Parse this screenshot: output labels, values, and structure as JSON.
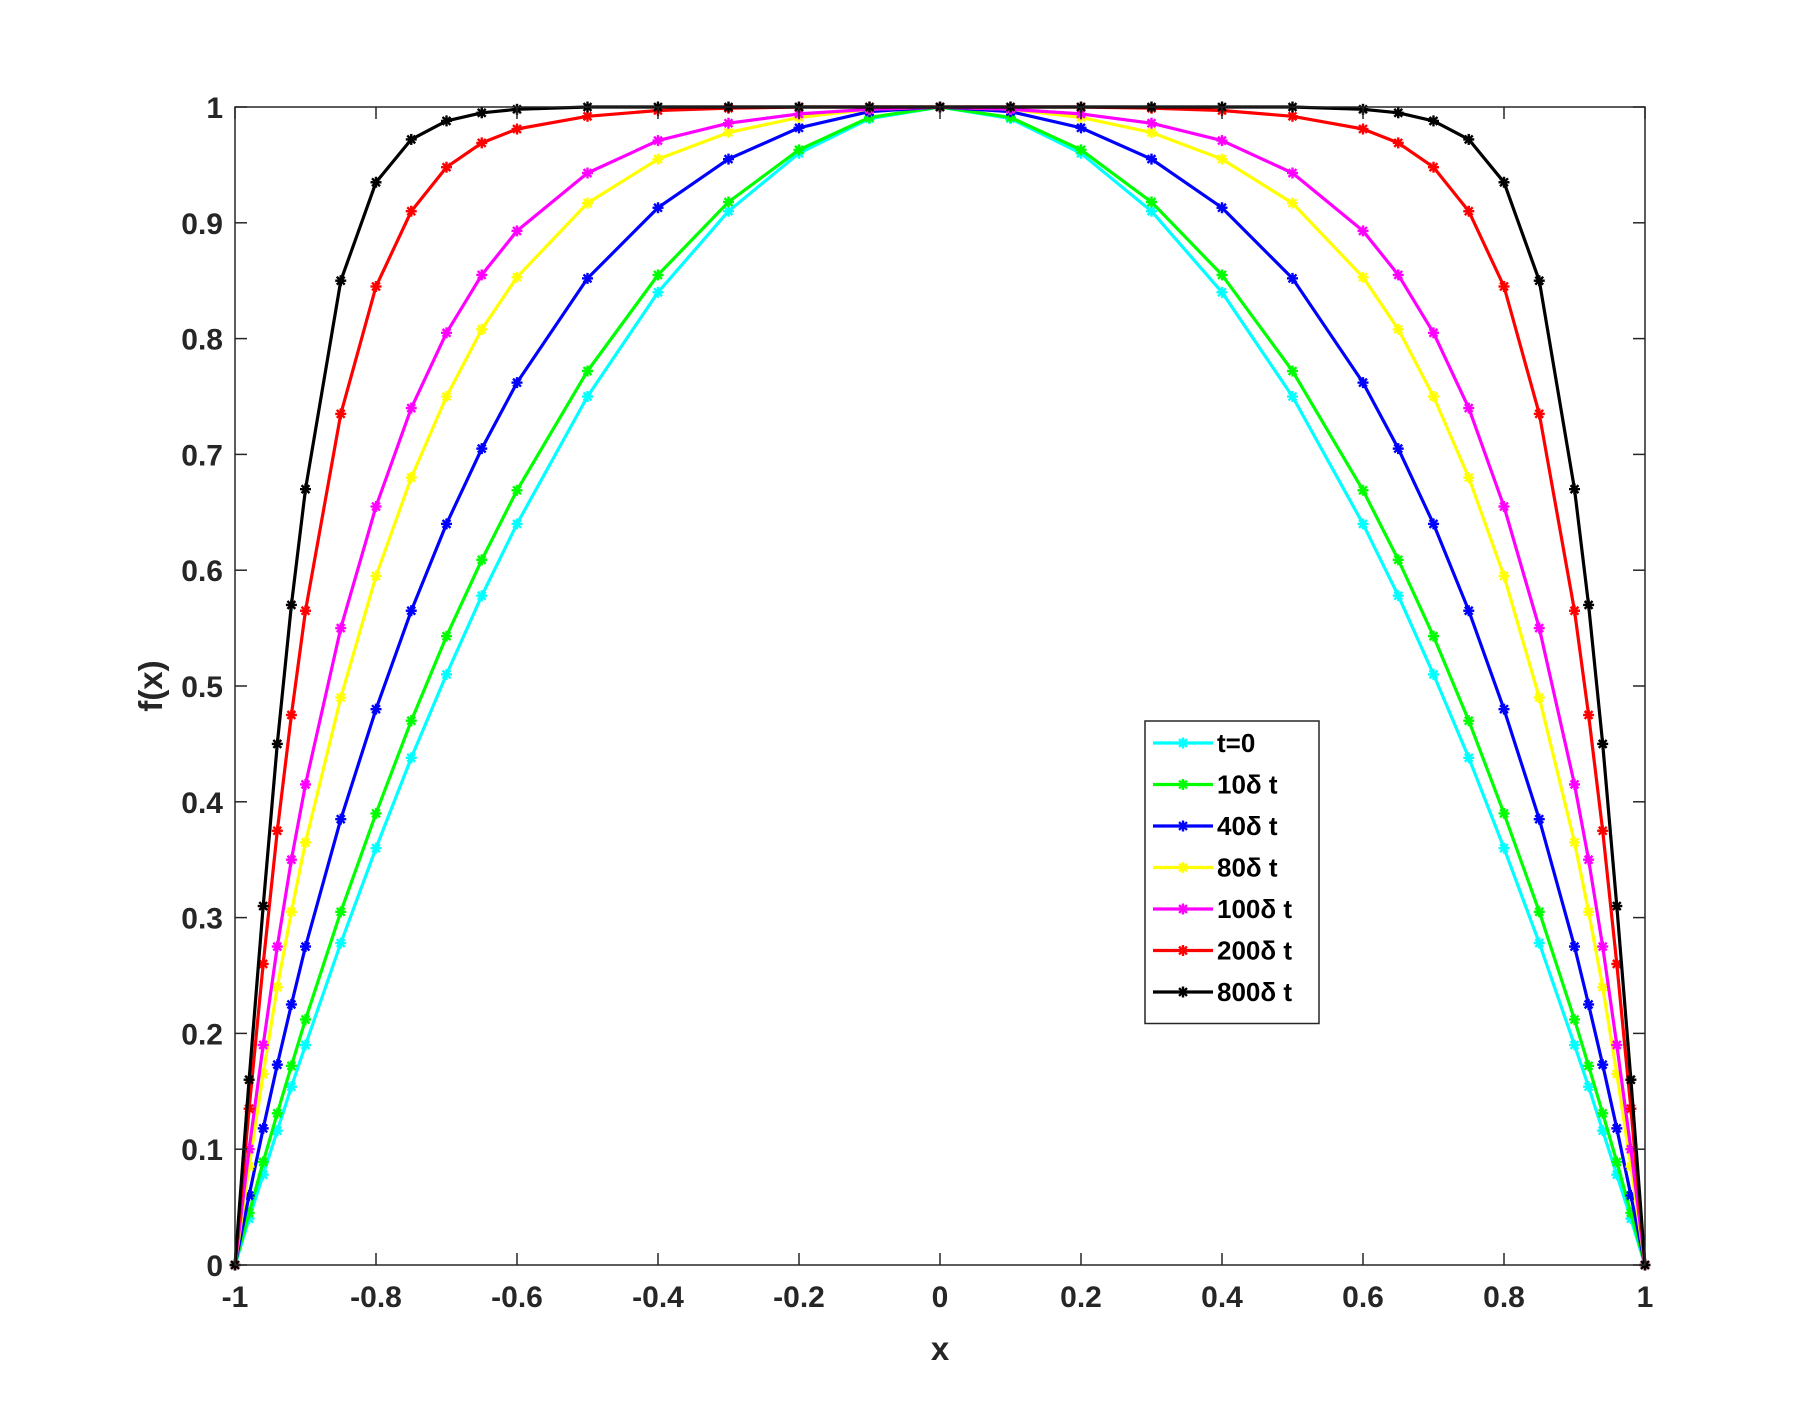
{
  "chart_data": {
    "type": "line",
    "xlabel": "x",
    "ylabel": "f(x)",
    "xlim": [
      -1,
      1
    ],
    "ylim": [
      0,
      1
    ],
    "x_ticks": [
      "-1",
      "-0.8",
      "-0.6",
      "-0.4",
      "-0.2",
      "0",
      "0.2",
      "0.4",
      "0.6",
      "0.8",
      "1"
    ],
    "y_ticks": [
      "0",
      "0.1",
      "0.2",
      "0.3",
      "0.4",
      "0.5",
      "0.6",
      "0.7",
      "0.8",
      "0.9",
      "1"
    ],
    "grid": false,
    "legend_position": "center-right",
    "marker": "asterisk",
    "x": [
      -1.0,
      -0.98,
      -0.96,
      -0.94,
      -0.92,
      -0.9,
      -0.85,
      -0.8,
      -0.75,
      -0.7,
      -0.65,
      -0.6,
      -0.5,
      -0.4,
      -0.3,
      -0.2,
      -0.1,
      0.0,
      0.1,
      0.2,
      0.3,
      0.4,
      0.5,
      0.6,
      0.65,
      0.7,
      0.75,
      0.8,
      0.85,
      0.9,
      0.92,
      0.94,
      0.96,
      0.98,
      1.0
    ],
    "series": [
      {
        "name": "t=0",
        "color": "#00ffff",
        "values": [
          0.0,
          0.04,
          0.078,
          0.116,
          0.154,
          0.19,
          0.278,
          0.36,
          0.438,
          0.51,
          0.578,
          0.64,
          0.75,
          0.84,
          0.91,
          0.96,
          0.99,
          1.0,
          0.99,
          0.96,
          0.91,
          0.84,
          0.75,
          0.64,
          0.578,
          0.51,
          0.438,
          0.36,
          0.278,
          0.19,
          0.154,
          0.116,
          0.078,
          0.04,
          0.0
        ]
      },
      {
        "name": "10δ t",
        "color": "#00ff00",
        "values": [
          0.0,
          0.045,
          0.089,
          0.131,
          0.172,
          0.212,
          0.305,
          0.39,
          0.47,
          0.543,
          0.609,
          0.669,
          0.772,
          0.855,
          0.918,
          0.963,
          0.991,
          1.0,
          0.991,
          0.963,
          0.918,
          0.855,
          0.772,
          0.669,
          0.609,
          0.543,
          0.47,
          0.39,
          0.305,
          0.212,
          0.172,
          0.131,
          0.089,
          0.045,
          0.0
        ]
      },
      {
        "name": "40δ t",
        "color": "#0000ff",
        "values": [
          0.0,
          0.06,
          0.118,
          0.173,
          0.225,
          0.275,
          0.385,
          0.48,
          0.565,
          0.64,
          0.705,
          0.762,
          0.852,
          0.913,
          0.955,
          0.982,
          0.996,
          1.0,
          0.996,
          0.982,
          0.955,
          0.913,
          0.852,
          0.762,
          0.705,
          0.64,
          0.565,
          0.48,
          0.385,
          0.275,
          0.225,
          0.173,
          0.118,
          0.06,
          0.0
        ]
      },
      {
        "name": "80δ t",
        "color": "#ffff00",
        "values": [
          0.0,
          0.085,
          0.165,
          0.24,
          0.305,
          0.365,
          0.49,
          0.595,
          0.68,
          0.75,
          0.808,
          0.853,
          0.917,
          0.955,
          0.978,
          0.991,
          0.998,
          1.0,
          0.998,
          0.991,
          0.978,
          0.955,
          0.917,
          0.853,
          0.808,
          0.75,
          0.68,
          0.595,
          0.49,
          0.365,
          0.305,
          0.24,
          0.165,
          0.085,
          0.0
        ]
      },
      {
        "name": "100δ t",
        "color": "#ff00ff",
        "values": [
          0.0,
          0.1,
          0.19,
          0.275,
          0.35,
          0.415,
          0.55,
          0.655,
          0.74,
          0.805,
          0.855,
          0.893,
          0.943,
          0.971,
          0.986,
          0.994,
          0.998,
          1.0,
          0.998,
          0.994,
          0.986,
          0.971,
          0.943,
          0.893,
          0.855,
          0.805,
          0.74,
          0.655,
          0.55,
          0.415,
          0.35,
          0.275,
          0.19,
          0.1,
          0.0
        ]
      },
      {
        "name": "200δ t",
        "color": "#ff0000",
        "values": [
          0.0,
          0.135,
          0.26,
          0.375,
          0.475,
          0.565,
          0.735,
          0.845,
          0.91,
          0.948,
          0.969,
          0.981,
          0.992,
          0.997,
          0.999,
          1.0,
          1.0,
          1.0,
          1.0,
          1.0,
          0.999,
          0.997,
          0.992,
          0.981,
          0.969,
          0.948,
          0.91,
          0.845,
          0.735,
          0.565,
          0.475,
          0.375,
          0.26,
          0.135,
          0.0
        ]
      },
      {
        "name": "800δ t",
        "color": "#000000",
        "values": [
          0.0,
          0.16,
          0.31,
          0.45,
          0.57,
          0.67,
          0.85,
          0.935,
          0.972,
          0.988,
          0.995,
          0.998,
          1.0,
          1.0,
          1.0,
          1.0,
          1.0,
          1.0,
          1.0,
          1.0,
          1.0,
          1.0,
          1.0,
          0.998,
          0.995,
          0.988,
          0.972,
          0.935,
          0.85,
          0.67,
          0.57,
          0.45,
          0.31,
          0.16,
          0.0
        ]
      }
    ]
  }
}
